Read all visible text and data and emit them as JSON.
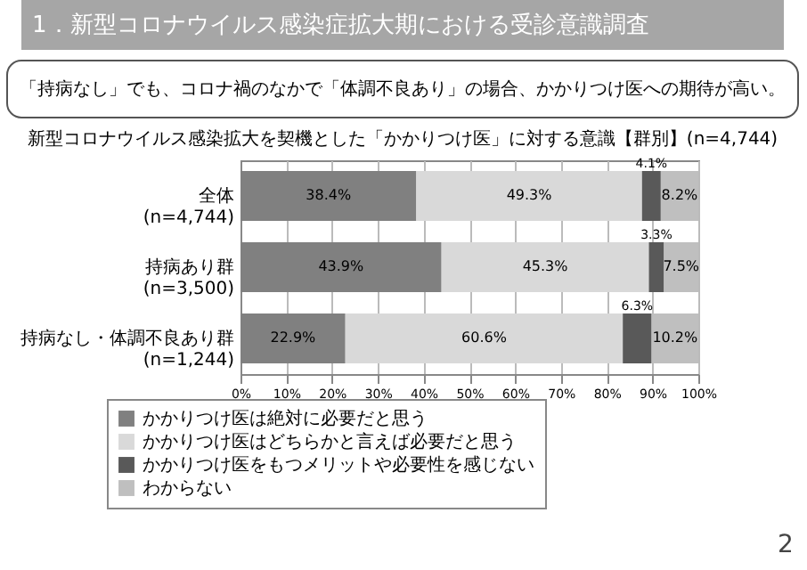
{
  "chart_data": {
    "type": "bar",
    "orientation": "horizontal",
    "stacked": true,
    "title": "新型コロナウイルス感染拡大を契機とした「かかりつけ医」に対する意識【群別】(n=4,744)",
    "annotations": [
      "1．新型コロナウイルス感染症拡大期における受診意識調査",
      "「持病なし」でも、コロナ禍のなかで「体調不良あり」の場合、かかりつけ医への期待が高い。",
      "2"
    ],
    "categories": [
      "全体\n(n=4,744)",
      "持病あり群\n(n=3,500)",
      "持病なし・体調不良あり群\n(n=1,244)"
    ],
    "series": [
      {
        "name": "かかりつけ医は絶対に必要だと思う",
        "color": "#808080",
        "values": [
          38.4,
          43.9,
          22.9
        ],
        "value_labels": [
          "38.4%",
          "43.9%",
          "22.9%"
        ]
      },
      {
        "name": "かかりつけ医はどちらかと言えば必要だと思う",
        "color": "#d9d9d9",
        "values": [
          49.3,
          45.3,
          60.6
        ],
        "value_labels": [
          "49.3%",
          "45.3%",
          "60.6%"
        ]
      },
      {
        "name": "かかりつけ医をもつメリットや必要性を感じない",
        "color": "#595959",
        "values": [
          4.1,
          3.3,
          6.3
        ],
        "value_labels": [
          "4.1%",
          "3.3%",
          "6.3%"
        ]
      },
      {
        "name": "わからない",
        "color": "#bfbfbf",
        "values": [
          8.2,
          7.5,
          10.2
        ],
        "value_labels": [
          "8.2%",
          "7.5%",
          "10.2%"
        ]
      }
    ],
    "xlim": [
      0,
      100
    ],
    "xticks": [
      {
        "value": 0,
        "label": "0%"
      },
      {
        "value": 10,
        "label": "10%"
      },
      {
        "value": 20,
        "label": "20%"
      },
      {
        "value": 30,
        "label": "30%"
      },
      {
        "value": 40,
        "label": "40%"
      },
      {
        "value": 50,
        "label": "50%"
      },
      {
        "value": 60,
        "label": "60%"
      },
      {
        "value": 70,
        "label": "70%"
      },
      {
        "value": 80,
        "label": "80%"
      },
      {
        "value": 90,
        "label": "90%"
      },
      {
        "value": 100,
        "label": "100%"
      }
    ],
    "grid": "x",
    "legend": "bottom"
  }
}
